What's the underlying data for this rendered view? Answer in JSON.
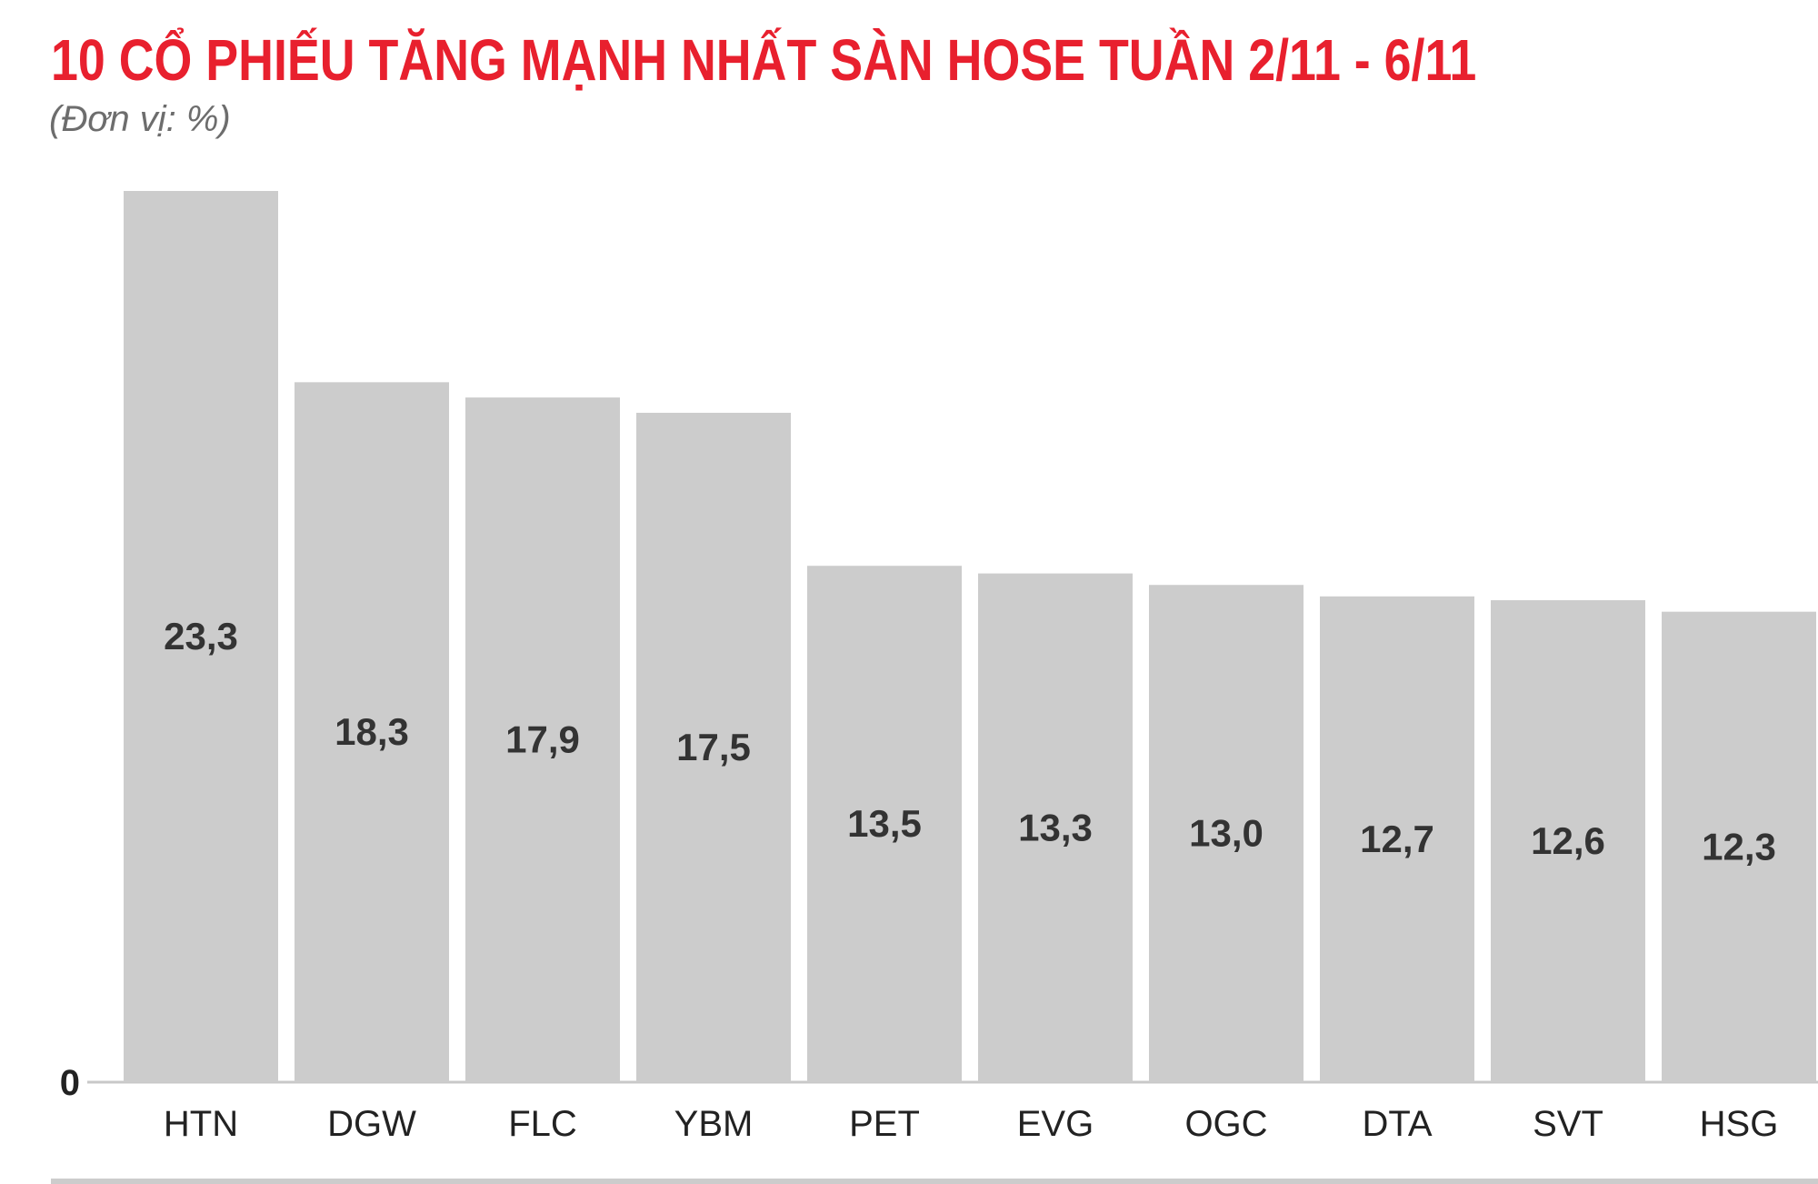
{
  "title": "10 CỔ PHIẾU TĂNG MẠNH NHẤT SÀN HOSE TUẦN 2/11 - 6/11",
  "unit": "(Đơn vị: %)",
  "colors": {
    "title": "#e8202e",
    "bar": "#cccccc",
    "value_label": "#333333",
    "axis": "#c8c8c8"
  },
  "chart_data": {
    "type": "bar",
    "title": "10 CỔ PHIẾU TĂNG MẠNH NHẤT SÀN HOSE TUẦN 2/11 - 6/11",
    "ylabel": "(Đơn vị: %)",
    "xlabel": "",
    "categories": [
      "HTN",
      "DGW",
      "FLC",
      "YBM",
      "PET",
      "EVG",
      "OGC",
      "DTA",
      "SVT",
      "HSG"
    ],
    "values": [
      23.3,
      18.3,
      17.9,
      17.5,
      13.5,
      13.3,
      13.0,
      12.7,
      12.6,
      12.3
    ],
    "value_labels": [
      "23,3",
      "18,3",
      "17,9",
      "17,5",
      "13,5",
      "13,3",
      "13,0",
      "12,7",
      "12,6",
      "12,3"
    ],
    "ylim": [
      0,
      23.3
    ],
    "y_tick_labels": [
      "0"
    ],
    "grid": false,
    "legend": "none"
  }
}
